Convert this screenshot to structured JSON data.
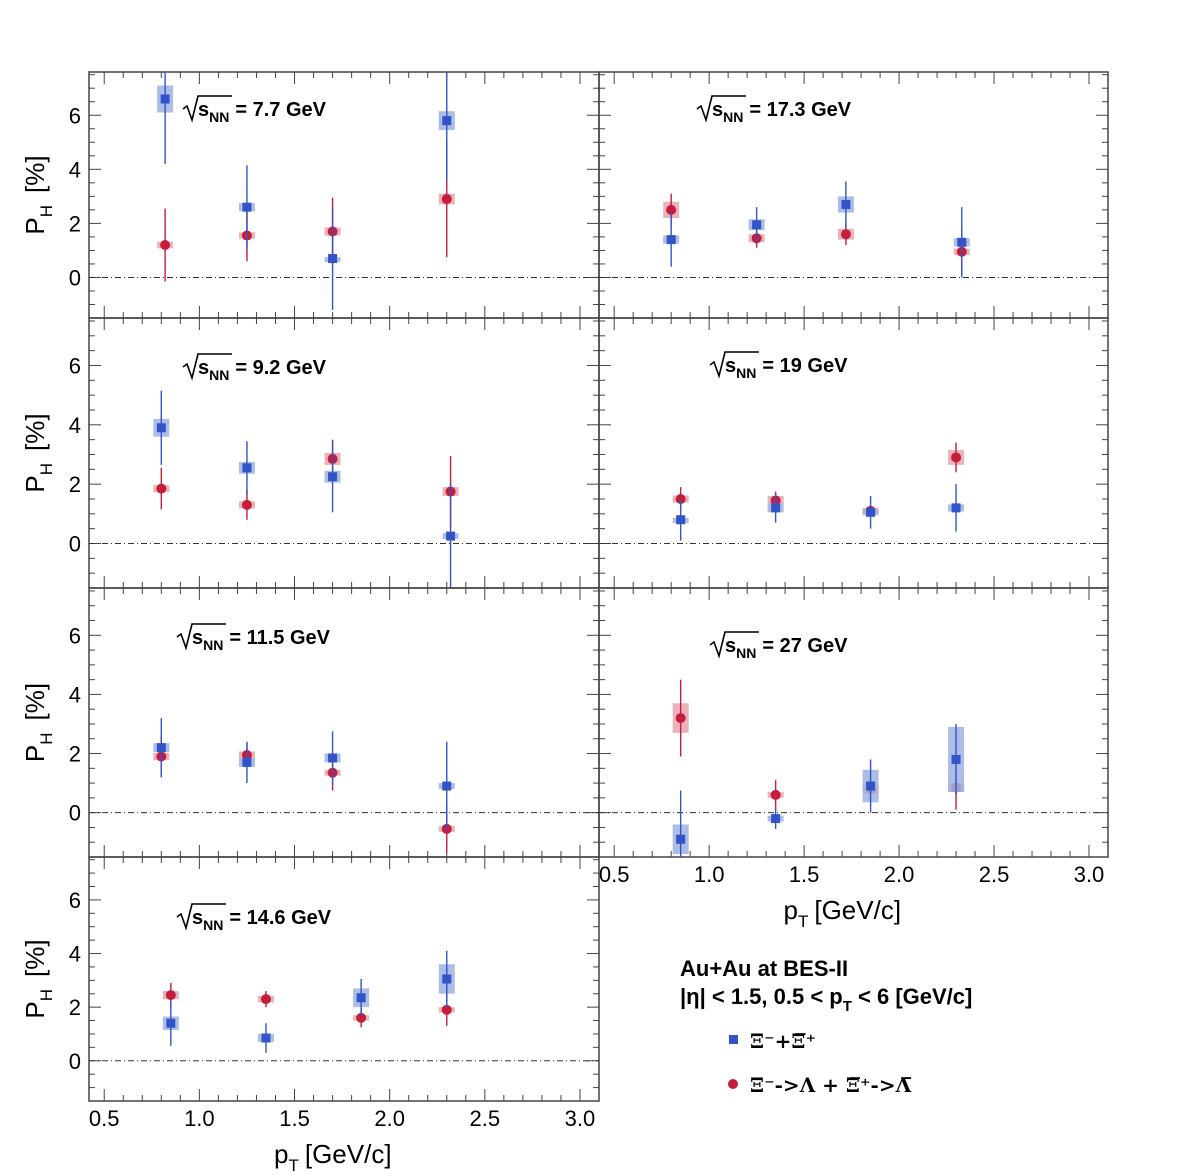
{
  "chart_data": {
    "type": "scatter",
    "ylabel": "P",
    "ylabel_sub": "H",
    "ylabel_unit": "[%]",
    "xlabel": "p",
    "xlabel_sub": "T",
    "xlabel_unit": "[GeV/c]",
    "xlim": [
      0.42,
      3.1
    ],
    "ylim": [
      -1.5,
      7.6
    ],
    "x_ticks": [
      0.5,
      1.0,
      1.5,
      2.0,
      2.5,
      3.0
    ],
    "x_tick_labels": [
      "0.5",
      "1.0",
      "1.5",
      "2.0",
      "2.5",
      "3.0"
    ],
    "y_ticks": [
      0,
      2,
      4,
      6
    ],
    "y_tick_labels": [
      "0",
      "2",
      "4",
      "6"
    ],
    "zero_line": true,
    "colors": {
      "xi": "#3354c8",
      "xi_box": "#9db3e2",
      "lambda": "#c41e3a",
      "lambda_box": "#e8a5b0"
    },
    "legend": {
      "title_line1": "Au+Au at BES-II",
      "title_line2": "|η| < 1.5, 0.5 < p",
      "title_line2_sub": "T",
      "title_line2_tail": " < 6 [GeV/c]",
      "series": [
        {
          "key": "xi",
          "marker": "square",
          "label": "Ξ⁻+Ξ̅⁺"
        },
        {
          "key": "lambda",
          "marker": "circle",
          "label": "Ξ⁻->Λ + Ξ̅⁺->Λ̅"
        }
      ]
    },
    "panels": [
      {
        "energy_prefix": "s",
        "energy_sub": "NN",
        "energy_value": "= 7.7 GeV",
        "xi": [
          {
            "x": 0.82,
            "y": 6.6,
            "stat": 2.4,
            "sys": 0.5
          },
          {
            "x": 1.25,
            "y": 2.6,
            "stat": 1.55,
            "sys": 0.15
          },
          {
            "x": 1.7,
            "y": 0.7,
            "stat": 1.9,
            "sys": 0.05
          },
          {
            "x": 2.3,
            "y": 5.8,
            "stat": 2.2,
            "sys": 0.35
          }
        ],
        "lambda": [
          {
            "x": 0.82,
            "y": 1.2,
            "stat": 1.35,
            "sys": 0.12
          },
          {
            "x": 1.25,
            "y": 1.55,
            "stat": 0.95,
            "sys": 0.12
          },
          {
            "x": 1.7,
            "y": 1.7,
            "stat": 1.25,
            "sys": 0.15
          },
          {
            "x": 2.3,
            "y": 2.9,
            "stat": 2.15,
            "sys": 0.2
          }
        ]
      },
      {
        "energy_prefix": "s",
        "energy_sub": "NN",
        "energy_value": "= 17.3 GeV",
        "xi": [
          {
            "x": 0.8,
            "y": 1.4,
            "stat": 1.0,
            "sys": 0.15
          },
          {
            "x": 1.25,
            "y": 1.95,
            "stat": 0.65,
            "sys": 0.2
          },
          {
            "x": 1.72,
            "y": 2.7,
            "stat": 0.85,
            "sys": 0.3
          },
          {
            "x": 2.33,
            "y": 1.3,
            "stat": 1.3,
            "sys": 0.15
          }
        ],
        "lambda": [
          {
            "x": 0.8,
            "y": 2.5,
            "stat": 0.6,
            "sys": 0.3
          },
          {
            "x": 1.25,
            "y": 1.45,
            "stat": 0.35,
            "sys": 0.15
          },
          {
            "x": 1.72,
            "y": 1.6,
            "stat": 0.4,
            "sys": 0.2
          },
          {
            "x": 2.33,
            "y": 0.95,
            "stat": 0.85,
            "sys": 0.12
          }
        ]
      },
      {
        "energy_prefix": "s",
        "energy_sub": "NN",
        "energy_value": "= 9.2 GeV",
        "xi": [
          {
            "x": 0.8,
            "y": 3.9,
            "stat": 1.25,
            "sys": 0.3
          },
          {
            "x": 1.25,
            "y": 2.55,
            "stat": 0.9,
            "sys": 0.2
          },
          {
            "x": 1.7,
            "y": 2.25,
            "stat": 1.2,
            "sys": 0.2
          },
          {
            "x": 2.32,
            "y": 0.25,
            "stat": 1.75,
            "sys": 0.1
          }
        ],
        "lambda": [
          {
            "x": 0.8,
            "y": 1.85,
            "stat": 0.7,
            "sys": 0.12
          },
          {
            "x": 1.25,
            "y": 1.3,
            "stat": 0.5,
            "sys": 0.12
          },
          {
            "x": 1.7,
            "y": 2.85,
            "stat": 0.65,
            "sys": 0.2
          },
          {
            "x": 2.32,
            "y": 1.75,
            "stat": 1.2,
            "sys": 0.15
          }
        ]
      },
      {
        "energy_prefix": "s",
        "energy_sub": "NN",
        "energy_value": "= 19 GeV",
        "xi": [
          {
            "x": 0.85,
            "y": 0.8,
            "stat": 0.7,
            "sys": 0.06
          },
          {
            "x": 1.35,
            "y": 1.2,
            "stat": 0.5,
            "sys": 0.15
          },
          {
            "x": 1.85,
            "y": 1.05,
            "stat": 0.55,
            "sys": 0.1
          },
          {
            "x": 2.3,
            "y": 1.2,
            "stat": 0.8,
            "sys": 0.12
          }
        ],
        "lambda": [
          {
            "x": 0.85,
            "y": 1.5,
            "stat": 0.4,
            "sys": 0.12
          },
          {
            "x": 1.35,
            "y": 1.45,
            "stat": 0.3,
            "sys": 0.15
          },
          {
            "x": 1.85,
            "y": 1.1,
            "stat": 0.2,
            "sys": 0.1
          },
          {
            "x": 2.3,
            "y": 2.9,
            "stat": 0.5,
            "sys": 0.25
          }
        ]
      },
      {
        "energy_prefix": "s",
        "energy_sub": "NN",
        "energy_value": "= 11.5 GeV",
        "xi": [
          {
            "x": 0.8,
            "y": 2.2,
            "stat": 1.0,
            "sys": 0.15
          },
          {
            "x": 1.25,
            "y": 1.7,
            "stat": 0.7,
            "sys": 0.15
          },
          {
            "x": 1.7,
            "y": 1.85,
            "stat": 0.9,
            "sys": 0.15
          },
          {
            "x": 2.3,
            "y": 0.9,
            "stat": 1.5,
            "sys": 0.1
          }
        ],
        "lambda": [
          {
            "x": 0.8,
            "y": 1.9,
            "stat": 0.7,
            "sys": 0.12
          },
          {
            "x": 1.25,
            "y": 1.95,
            "stat": 0.4,
            "sys": 0.12
          },
          {
            "x": 1.7,
            "y": 1.35,
            "stat": 0.6,
            "sys": 0.1
          },
          {
            "x": 2.3,
            "y": -0.55,
            "stat": 0.8,
            "sys": 0.1
          }
        ]
      },
      {
        "energy_prefix": "s",
        "energy_sub": "NN",
        "energy_value": "= 27 GeV",
        "xi": [
          {
            "x": 0.85,
            "y": -0.9,
            "stat": 1.65,
            "sys": 0.5
          },
          {
            "x": 1.35,
            "y": -0.2,
            "stat": 0.35,
            "sys": 0.1
          },
          {
            "x": 1.85,
            "y": 0.9,
            "stat": 0.9,
            "sys": 0.55
          },
          {
            "x": 2.3,
            "y": 1.8,
            "stat": 1.2,
            "sys": 1.1
          }
        ],
        "lambda": [
          {
            "x": 0.85,
            "y": 3.2,
            "stat": 1.3,
            "sys": 0.5
          },
          {
            "x": 1.35,
            "y": 0.6,
            "stat": 0.5,
            "sys": 0.1
          },
          {
            "x": 1.85,
            "y": 0.8,
            "stat": 0.2,
            "sys": 0.15
          },
          {
            "x": 2.3,
            "y": 0.85,
            "stat": 0.75,
            "sys": 0.15
          }
        ]
      },
      {
        "energy_prefix": "s",
        "energy_sub": "NN",
        "energy_value": "= 14.6 GeV",
        "xi": [
          {
            "x": 0.85,
            "y": 1.4,
            "stat": 0.85,
            "sys": 0.25
          },
          {
            "x": 1.35,
            "y": 0.85,
            "stat": 0.55,
            "sys": 0.15
          },
          {
            "x": 1.85,
            "y": 2.35,
            "stat": 0.7,
            "sys": 0.35
          },
          {
            "x": 2.3,
            "y": 3.05,
            "stat": 1.05,
            "sys": 0.55
          }
        ],
        "lambda": [
          {
            "x": 0.85,
            "y": 2.45,
            "stat": 0.45,
            "sys": 0.15
          },
          {
            "x": 1.35,
            "y": 2.3,
            "stat": 0.3,
            "sys": 0.12
          },
          {
            "x": 1.85,
            "y": 1.6,
            "stat": 0.35,
            "sys": 0.1
          },
          {
            "x": 2.3,
            "y": 1.9,
            "stat": 0.6,
            "sys": 0.1
          }
        ]
      }
    ]
  }
}
